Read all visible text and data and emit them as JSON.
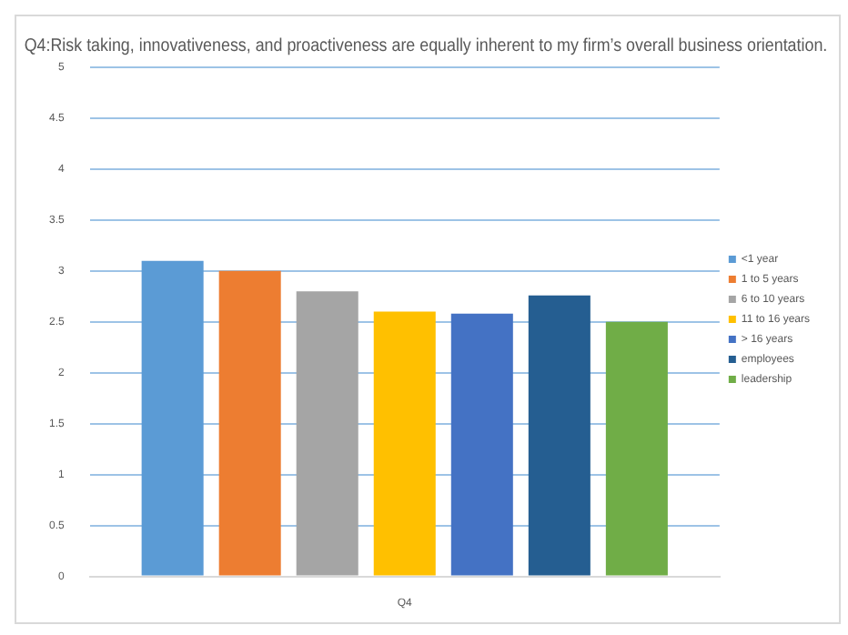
{
  "chart_data": {
    "type": "bar",
    "title": "Q4:Risk taking, innovativeness, and proactiveness are equally inherent to my firm’s overall business orientation.",
    "categories": [
      "Q4"
    ],
    "series": [
      {
        "name": "<1 year",
        "color": "#5b9bd5",
        "values": [
          3.1
        ]
      },
      {
        "name": "1 to 5 years",
        "color": "#ed7d31",
        "values": [
          3.0
        ]
      },
      {
        "name": "6 to 10 years",
        "color": "#a5a5a5",
        "values": [
          2.8
        ]
      },
      {
        "name": "11 to 16 years",
        "color": "#ffc000",
        "values": [
          2.6
        ]
      },
      {
        "name": "> 16 years",
        "color": "#4472c4",
        "values": [
          2.58
        ]
      },
      {
        "name": "employees",
        "color": "#255e91",
        "values": [
          2.76
        ]
      },
      {
        "name": "leadership",
        "color": "#70ad47",
        "values": [
          2.5
        ]
      }
    ],
    "ylim": [
      0,
      5
    ],
    "yticks": [
      0,
      0.5,
      1,
      1.5,
      2,
      2.5,
      3,
      3.5,
      4,
      4.5,
      5
    ],
    "grid": "y",
    "legend": "right"
  }
}
